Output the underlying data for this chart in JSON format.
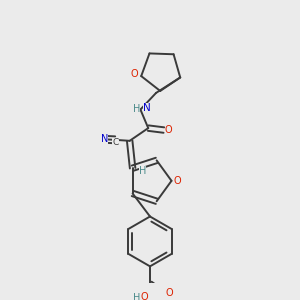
{
  "bg_color": "#ebebeb",
  "bond_color": "#3a3a3a",
  "O_color": "#dd2200",
  "N_color": "#0000cc",
  "C_color": "#3a3a3a",
  "H_color": "#4a8a8a",
  "lw": 1.4,
  "dbo": 0.032,
  "xlim": [
    0.2,
    2.8
  ],
  "ylim": [
    0.05,
    2.95
  ]
}
